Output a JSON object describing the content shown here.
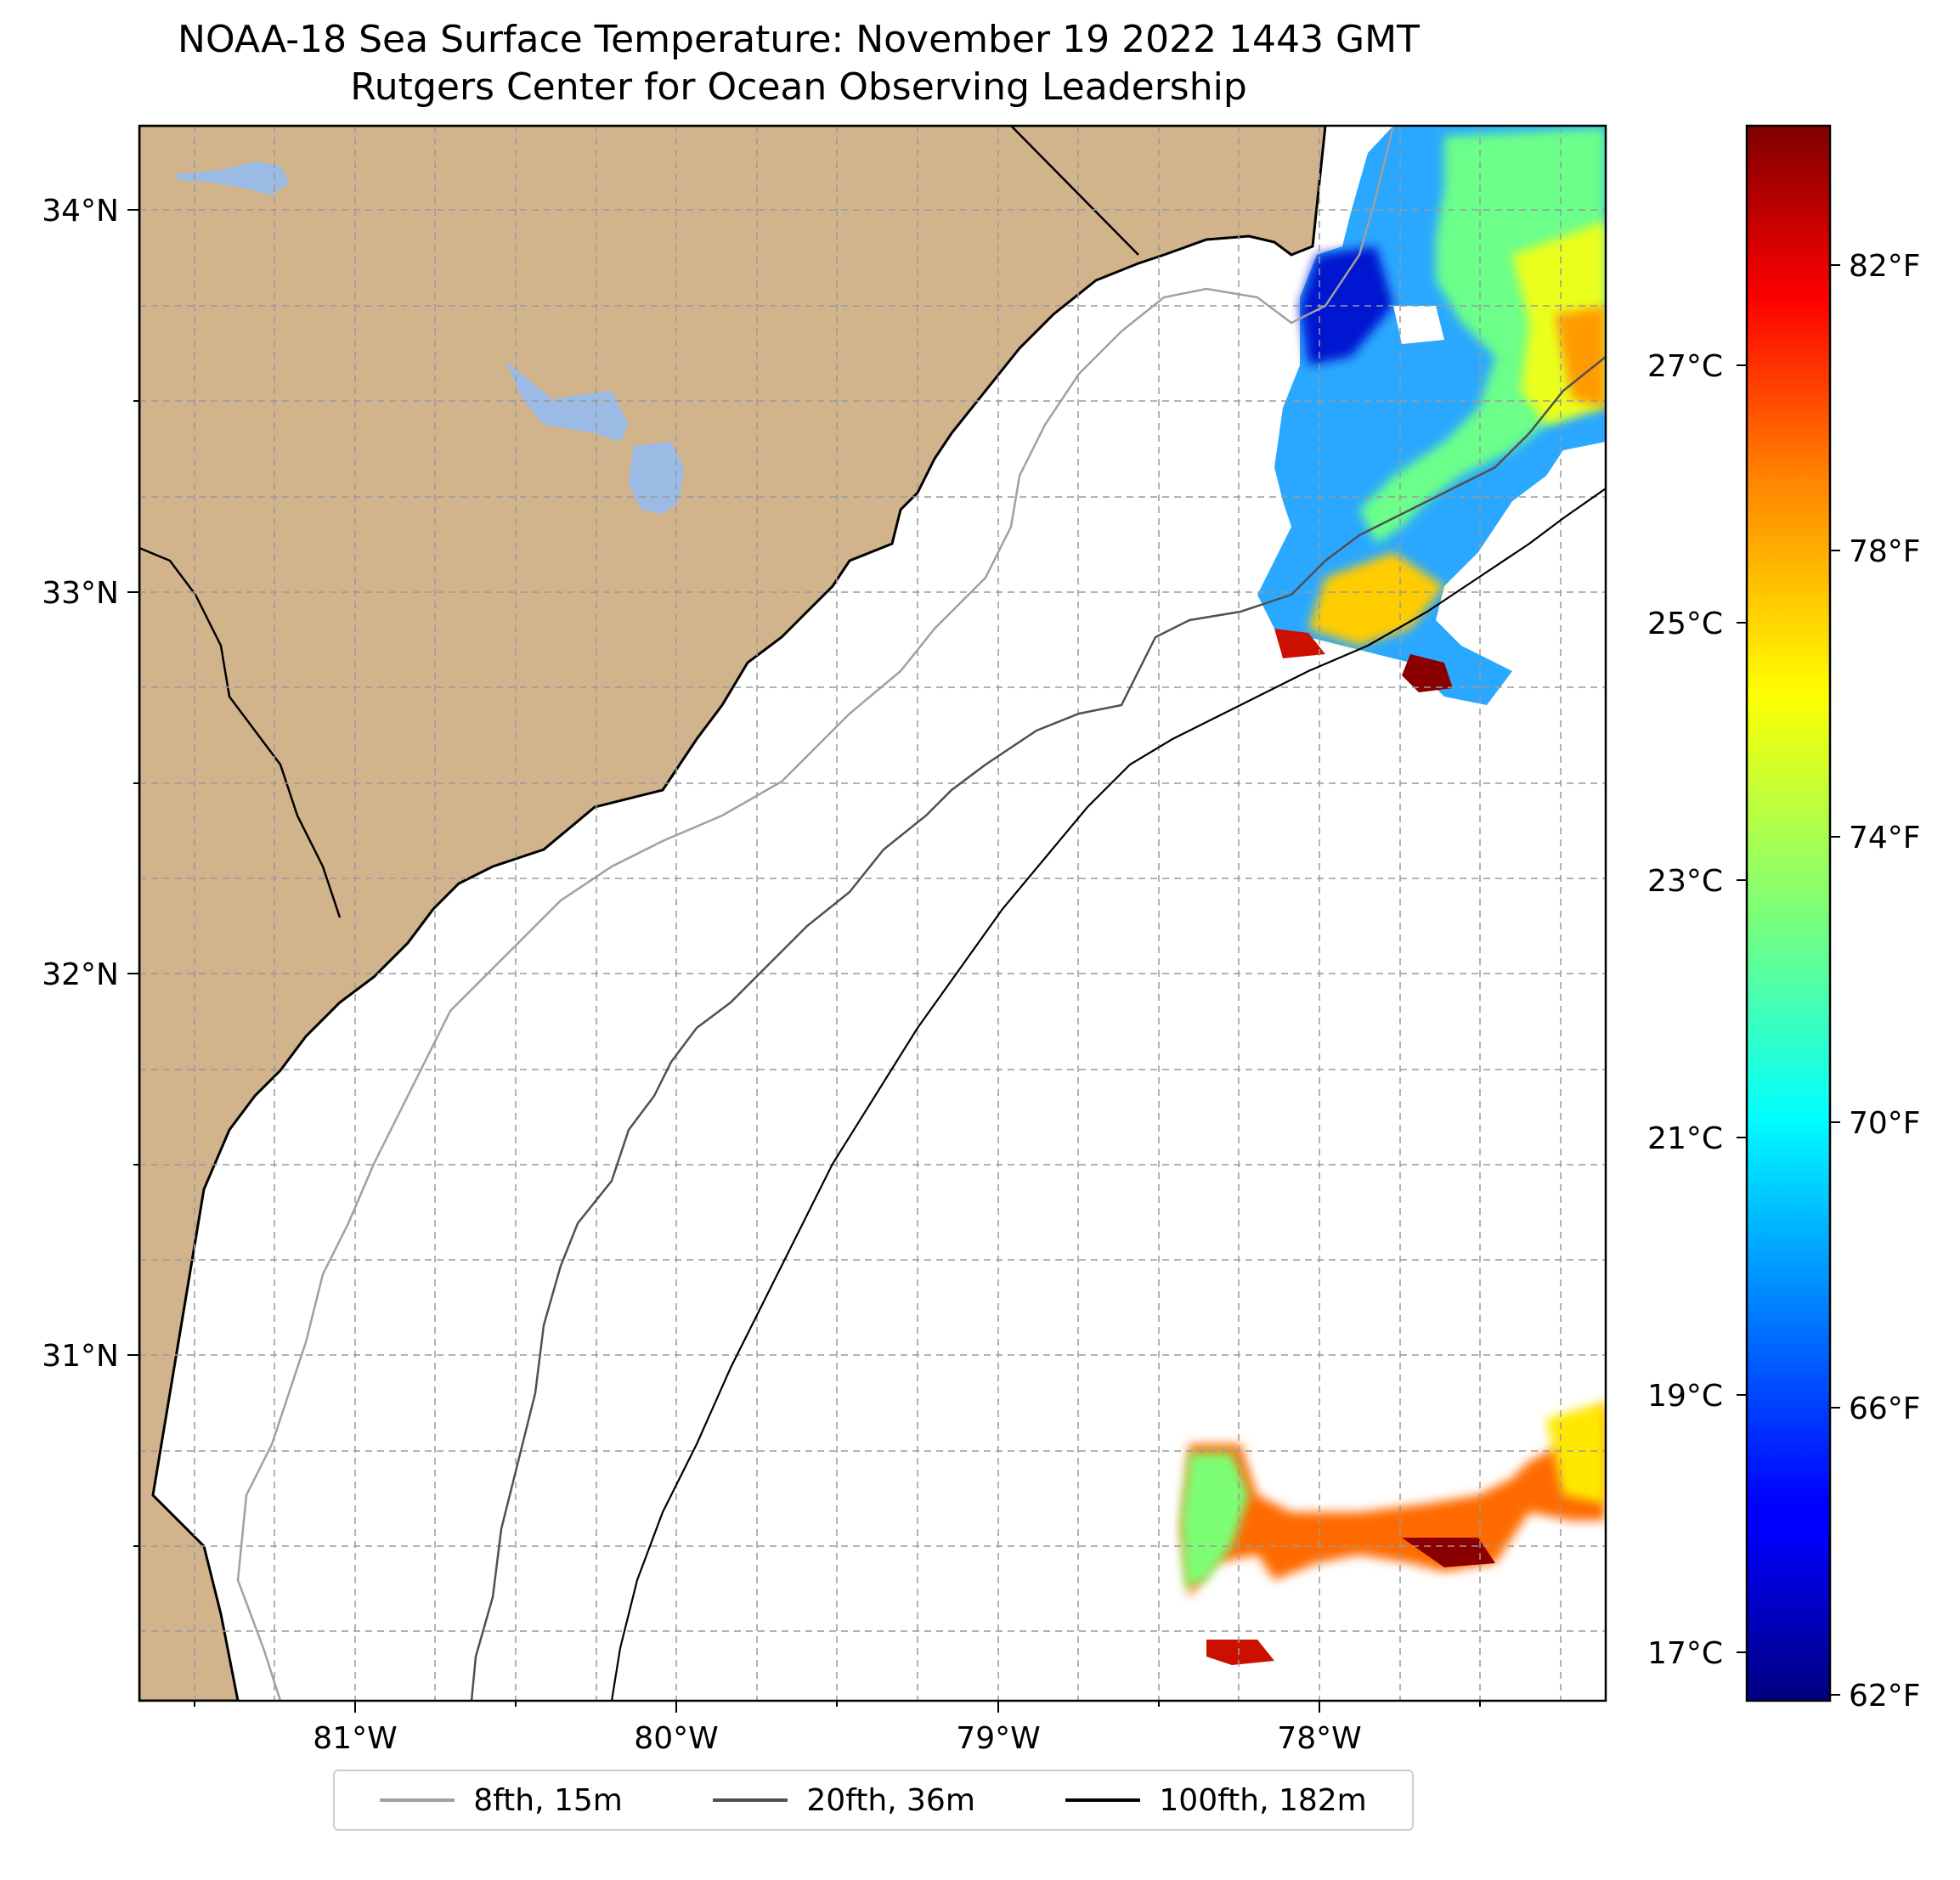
{
  "title": "NOAA-18 Sea Surface Temperature: November 19 2022 1443 GMT",
  "subtitle": "Rutgers Center for Ocean Observing Leadership",
  "map": {
    "lon_range": [
      -81.67,
      -77.13
    ],
    "lat_range": [
      30.07,
      34.22
    ],
    "lat_ticks": [
      "34°N",
      "33°N",
      "32°N",
      "31°N"
    ],
    "lon_ticks": [
      "81°W",
      "80°W",
      "79°W",
      "78°W"
    ],
    "land_color": "#d2b48c",
    "lake_color": "#9bbbe5",
    "grid": "dashed"
  },
  "colorbar": {
    "colormap": "jet",
    "fahrenheit_ticks": [
      "82°F",
      "78°F",
      "74°F",
      "70°F",
      "66°F",
      "62°F"
    ],
    "celsius_ticks": [
      "27°C",
      "25°C",
      "23°C",
      "21°C",
      "19°C",
      "17°C"
    ],
    "range_f": [
      62,
      84.5
    ]
  },
  "legend": [
    {
      "label": "8fth, 15m",
      "color": "#a0a0a0"
    },
    {
      "label": "20fth, 36m",
      "color": "#505050"
    },
    {
      "label": "100fth, 182m",
      "color": "#000000"
    }
  ]
}
